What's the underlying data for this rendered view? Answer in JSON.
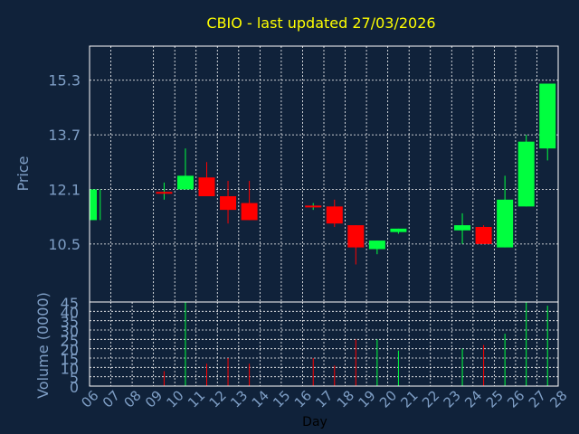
{
  "colors": {
    "background": "#10223a",
    "axis": "#ffffff",
    "grid": "#ffffff",
    "label": "#7f9fc6",
    "title": "#ffff00",
    "up": "#00ff3f",
    "down": "#ff0000",
    "text_dark": "#000000"
  },
  "chart_data": [
    {
      "type": "candlestick",
      "title": "CBIO - last updated 27/03/2026",
      "ylabel": "Price",
      "ylim": [
        8.8,
        16.3
      ],
      "yticks": [
        "10.5",
        "12.1",
        "13.7",
        "15.3"
      ],
      "grid": true,
      "candles": [
        {
          "day": 6,
          "open": 11.2,
          "close": 12.1,
          "high": 12.1,
          "low": 11.2,
          "dir": "up"
        },
        {
          "day": 9,
          "open": 12.05,
          "close": 12.0,
          "high": 12.3,
          "low": 11.8,
          "dir": "flat"
        },
        {
          "day": 10,
          "open": 12.1,
          "close": 12.5,
          "high": 13.3,
          "low": 12.1,
          "dir": "up"
        },
        {
          "day": 11,
          "open": 12.45,
          "close": 11.9,
          "high": 12.9,
          "low": 11.9,
          "dir": "down"
        },
        {
          "day": 12,
          "open": 11.9,
          "close": 11.5,
          "high": 12.35,
          "low": 11.1,
          "dir": "down"
        },
        {
          "day": 13,
          "open": 11.7,
          "close": 11.2,
          "high": 12.35,
          "low": 11.2,
          "dir": "down"
        },
        {
          "day": 16,
          "open": 11.6,
          "close": 11.6,
          "high": 11.7,
          "low": 11.5,
          "dir": "flat"
        },
        {
          "day": 17,
          "open": 11.6,
          "close": 11.1,
          "high": 11.8,
          "low": 11.0,
          "dir": "down"
        },
        {
          "day": 18,
          "open": 11.05,
          "close": 10.4,
          "high": 11.05,
          "low": 9.9,
          "dir": "down"
        },
        {
          "day": 19,
          "open": 10.35,
          "close": 10.6,
          "high": 10.6,
          "low": 10.2,
          "dir": "up"
        },
        {
          "day": 20,
          "open": 10.85,
          "close": 10.95,
          "high": 10.95,
          "low": 10.8,
          "dir": "up"
        },
        {
          "day": 23,
          "open": 10.9,
          "close": 11.05,
          "high": 11.4,
          "low": 10.5,
          "dir": "up"
        },
        {
          "day": 24,
          "open": 11.0,
          "close": 10.5,
          "high": 11.05,
          "low": 10.5,
          "dir": "down"
        },
        {
          "day": 25,
          "open": 10.4,
          "close": 11.8,
          "high": 12.5,
          "low": 10.4,
          "dir": "up"
        },
        {
          "day": 26,
          "open": 11.6,
          "close": 13.5,
          "high": 13.7,
          "low": 11.6,
          "dir": "up"
        },
        {
          "day": 27,
          "open": 13.3,
          "close": 15.2,
          "high": 15.2,
          "low": 12.95,
          "dir": "up"
        }
      ]
    },
    {
      "type": "bar",
      "ylabel": "Volume (0000)",
      "xlabel": "Day",
      "ylim": [
        0,
        45
      ],
      "yticks": [
        "0",
        "5",
        "10",
        "15",
        "20",
        "25",
        "30",
        "35",
        "40",
        "45"
      ],
      "grid": true,
      "categories": [
        "06",
        "07",
        "08",
        "09",
        "10",
        "11",
        "12",
        "13",
        "14",
        "15",
        "16",
        "17",
        "18",
        "19",
        "20",
        "21",
        "22",
        "23",
        "24",
        "25",
        "26",
        "27",
        "28"
      ],
      "bars": [
        {
          "day": 6,
          "value": 0,
          "dir": "up"
        },
        {
          "day": 9,
          "value": 8,
          "dir": "down"
        },
        {
          "day": 10,
          "value": 45,
          "dir": "up"
        },
        {
          "day": 11,
          "value": 12,
          "dir": "down"
        },
        {
          "day": 12,
          "value": 15,
          "dir": "down"
        },
        {
          "day": 13,
          "value": 12,
          "dir": "down"
        },
        {
          "day": 16,
          "value": 15,
          "dir": "down"
        },
        {
          "day": 17,
          "value": 11,
          "dir": "down"
        },
        {
          "day": 18,
          "value": 25,
          "dir": "down"
        },
        {
          "day": 19,
          "value": 25,
          "dir": "up"
        },
        {
          "day": 20,
          "value": 19,
          "dir": "up"
        },
        {
          "day": 23,
          "value": 20,
          "dir": "up"
        },
        {
          "day": 24,
          "value": 22,
          "dir": "down"
        },
        {
          "day": 25,
          "value": 28,
          "dir": "up"
        },
        {
          "day": 26,
          "value": 45,
          "dir": "up"
        },
        {
          "day": 27,
          "value": 43,
          "dir": "up"
        }
      ]
    }
  ]
}
